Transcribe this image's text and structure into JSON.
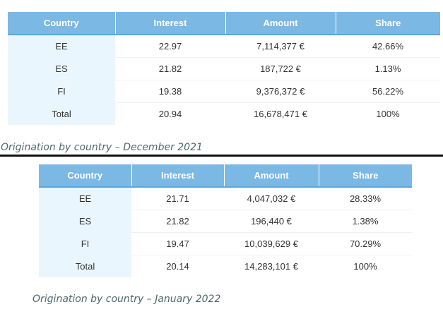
{
  "table1": {
    "headers": [
      "Country",
      "Interest",
      "Amount",
      "Share"
    ],
    "rows": [
      [
        "EE",
        "22.97",
        "7,114,377 €",
        "42.66%"
      ],
      [
        "ES",
        "21.82",
        "187,722 €",
        "1.13%"
      ],
      [
        "FI",
        "19.38",
        "9,376,372 €",
        "56.22%"
      ],
      [
        "Total",
        "20.94",
        "16,678,471 €",
        "100%"
      ]
    ],
    "caption": "Origination by country – December 2021"
  },
  "table2": {
    "headers": [
      "Country",
      "Interest",
      "Amount",
      "Share"
    ],
    "rows": [
      [
        "EE",
        "21.71",
        "4,047,032 €",
        "28.33%"
      ],
      [
        "ES",
        "21.82",
        "196,440 €",
        "1.38%"
      ],
      [
        "FI",
        "19.47",
        "10,039,629 €",
        "70.29%"
      ],
      [
        "Total",
        "20.14",
        "14,283,101 €",
        "100%"
      ]
    ],
    "caption": "Origination by country – January 2022"
  }
}
